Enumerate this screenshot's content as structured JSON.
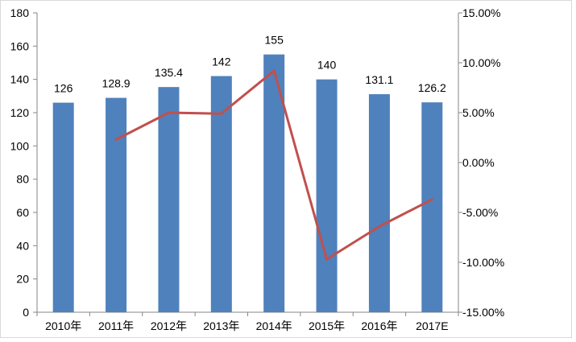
{
  "chart_data": {
    "type": "bar",
    "categories": [
      "2010年",
      "2011年",
      "2012年",
      "2013年",
      "2014年",
      "2015年",
      "2016年",
      "2017E"
    ],
    "series": [
      {
        "type": "bar",
        "axis": "left",
        "values": [
          126,
          128.9,
          135.4,
          142,
          155,
          140,
          131.1,
          126.2
        ],
        "data_labels": [
          "126",
          "128.9",
          "135.4",
          "142",
          "155",
          "140",
          "131.1",
          "126.2"
        ],
        "color": "#4f81bd"
      },
      {
        "type": "line",
        "axis": "right",
        "values": [
          null,
          2.3,
          5.0,
          4.9,
          9.2,
          -9.7,
          -6.4,
          -3.7
        ],
        "color": "#c0504d"
      }
    ],
    "y_left": {
      "ylim": [
        0,
        180
      ],
      "ticks": [
        0,
        20,
        40,
        60,
        80,
        100,
        120,
        140,
        160,
        180
      ]
    },
    "y_right": {
      "ylim": [
        -15,
        15
      ],
      "ticks": [
        -15,
        -10,
        -5,
        0,
        5,
        10,
        15
      ],
      "tick_labels": [
        "-15.00%",
        "-10.00%",
        "-5.00%",
        "0.00%",
        "5.00%",
        "10.00%",
        "15.00%"
      ]
    },
    "title": "",
    "xlabel": "",
    "ylabel": "",
    "grid": false,
    "legend": "none"
  }
}
